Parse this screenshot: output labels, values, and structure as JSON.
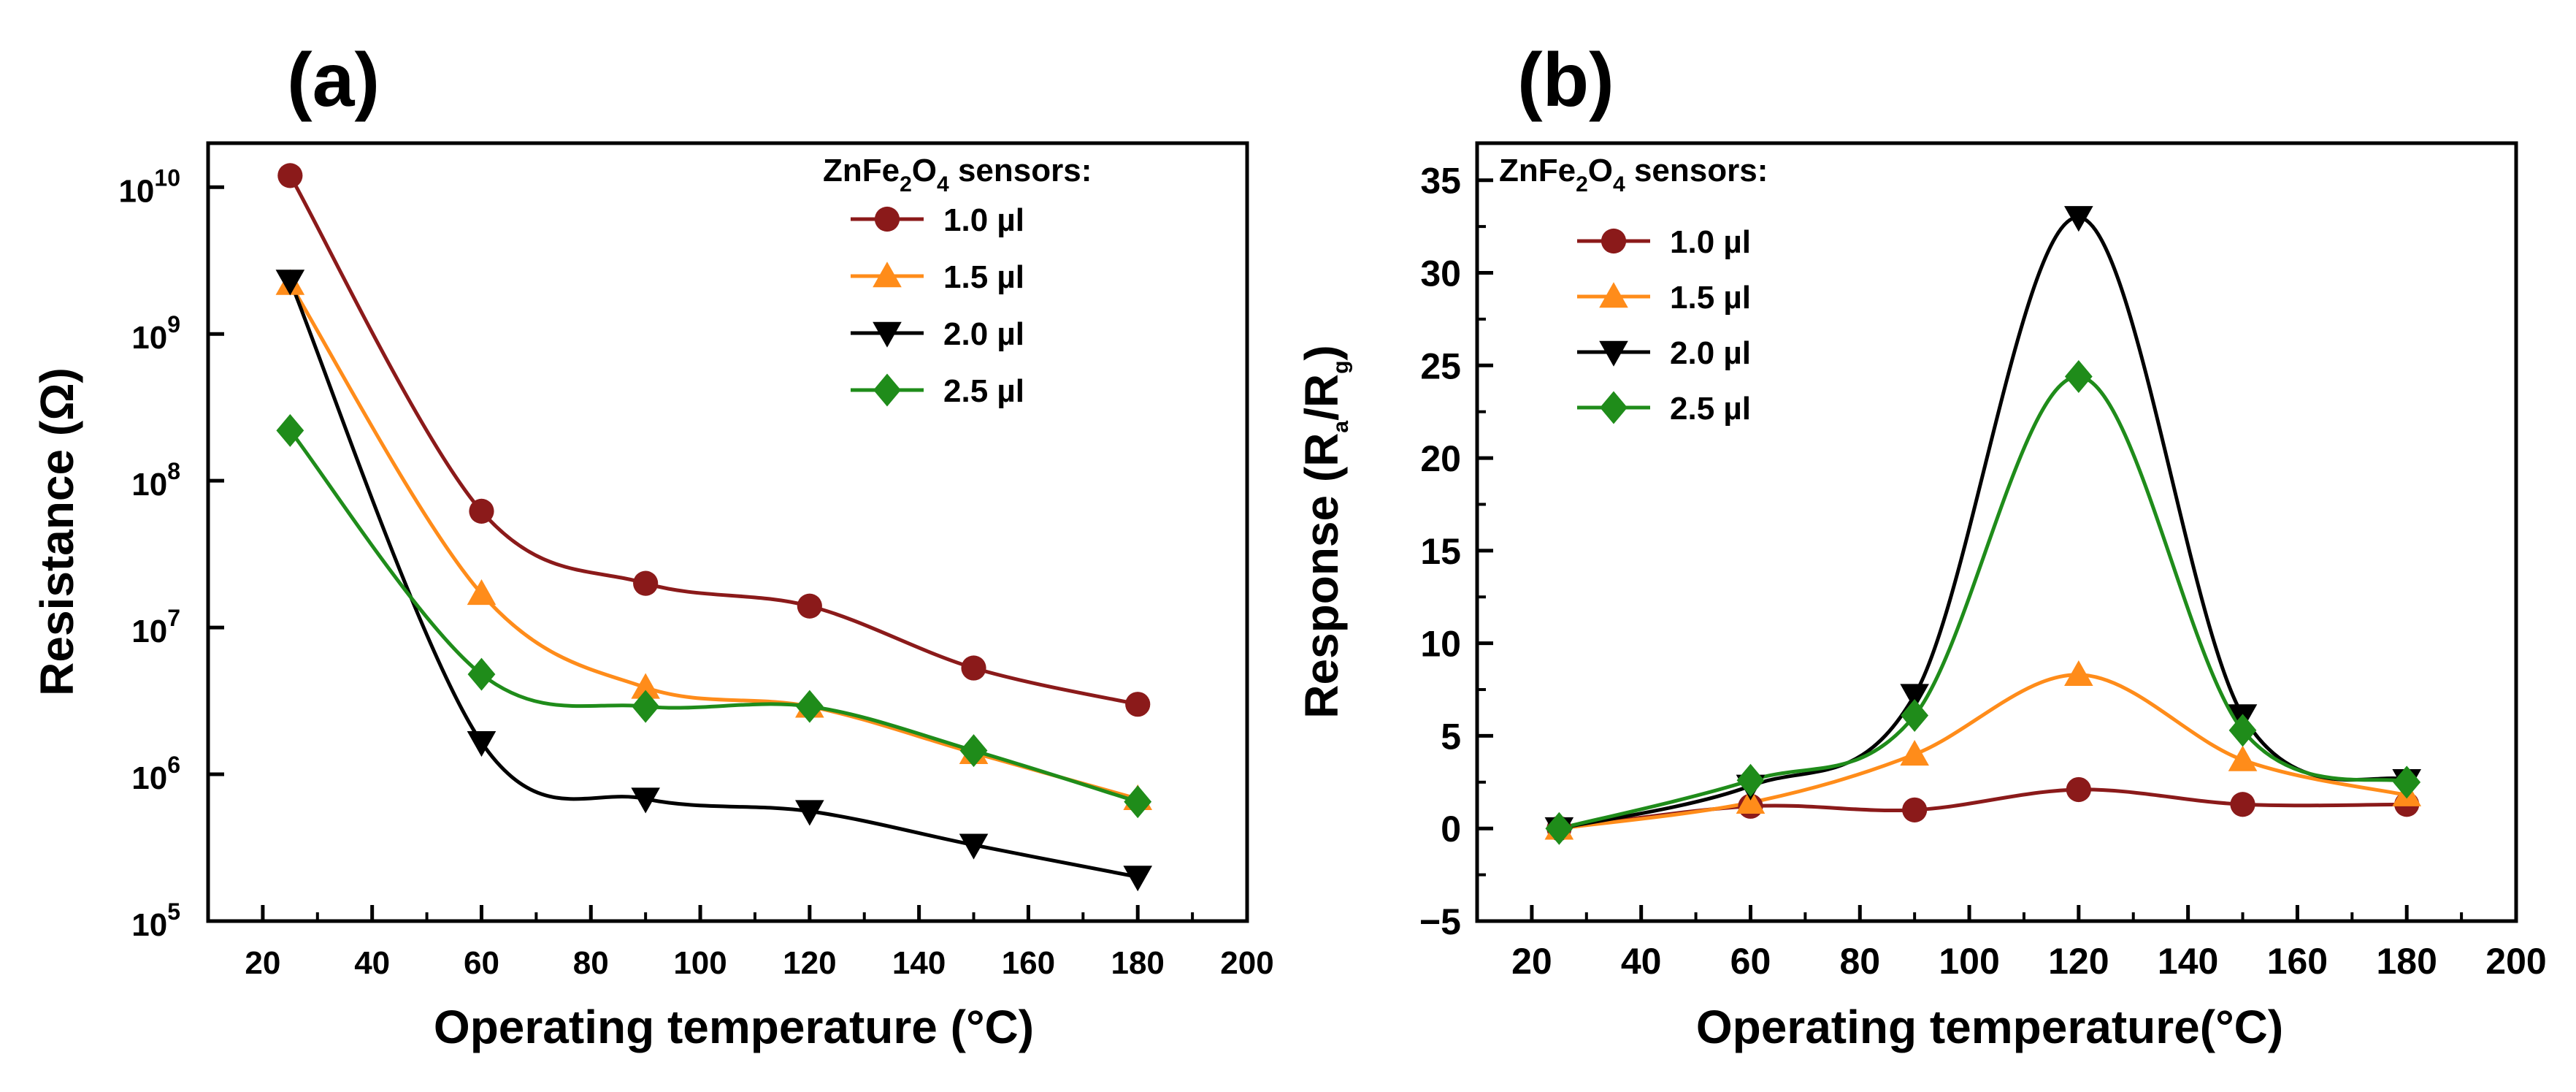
{
  "chart_data": [
    {
      "type": "line",
      "panel_label": "(a)",
      "xlabel": "Operating temperature (°C)",
      "ylabel": "Resistance (Ω)",
      "yscale": "log",
      "xlim": [
        10,
        200
      ],
      "ylim_log10": [
        5,
        10.3
      ],
      "x_ticks": [
        20,
        40,
        60,
        80,
        100,
        120,
        140,
        160,
        180,
        200
      ],
      "y_tick_exponents": [
        5,
        6,
        7,
        8,
        9,
        10
      ],
      "y_tick_base": "10",
      "legend": {
        "title": "ZnFe2O4 sensors:",
        "placement": "top-right"
      },
      "x": [
        25,
        60,
        90,
        120,
        150,
        180
      ],
      "series": [
        {
          "name": "1.0 µl",
          "color": "#8b1a1a",
          "marker": "circle",
          "values": [
            12000000000,
            62000000,
            20000000,
            14000000,
            5300000,
            3000000
          ]
        },
        {
          "name": "1.5 µl",
          "color": "#ff8c1a",
          "marker": "triangle-up",
          "values": [
            2200000000,
            17000000,
            3900000,
            2900000,
            1400000,
            680000
          ]
        },
        {
          "name": "2.0 µl",
          "color": "#000000",
          "marker": "triangle-down",
          "values": [
            2300000000,
            1650000,
            680000,
            560000,
            330000,
            200000
          ]
        },
        {
          "name": "2.5 µl",
          "color": "#1f8c1a",
          "marker": "diamond",
          "values": [
            220000000,
            4800000,
            2900000,
            2900000,
            1450000,
            650000
          ]
        }
      ]
    },
    {
      "type": "line",
      "panel_label": "(b)",
      "xlabel": "Operating temperature(°C)",
      "ylabel": "Response (Ra/Rg)",
      "xlim": [
        10,
        200
      ],
      "ylim": [
        -5,
        37
      ],
      "x_ticks": [
        20,
        40,
        60,
        80,
        100,
        120,
        140,
        160,
        180,
        200
      ],
      "y_ticks": [
        -5,
        0,
        5,
        10,
        15,
        20,
        25,
        30,
        35
      ],
      "legend": {
        "title": "ZnFe2O4 sensors:",
        "placement": "top-left"
      },
      "x": [
        25,
        60,
        90,
        120,
        150,
        180
      ],
      "series": [
        {
          "name": "1.0 µl",
          "color": "#8b1a1a",
          "marker": "circle",
          "values": [
            0,
            1.2,
            1.0,
            2.1,
            1.3,
            1.3
          ]
        },
        {
          "name": "1.5 µl",
          "color": "#ff8c1a",
          "marker": "triangle-up",
          "values": [
            0,
            1.4,
            4.0,
            8.3,
            3.7,
            1.8
          ]
        },
        {
          "name": "2.0 µl",
          "color": "#000000",
          "marker": "triangle-down",
          "values": [
            0,
            2.3,
            7.2,
            33.0,
            6.1,
            2.6
          ]
        },
        {
          "name": "2.5 µl",
          "color": "#1f8c1a",
          "marker": "diamond",
          "values": [
            0,
            2.6,
            6.1,
            24.4,
            5.3,
            2.5
          ]
        }
      ]
    }
  ]
}
